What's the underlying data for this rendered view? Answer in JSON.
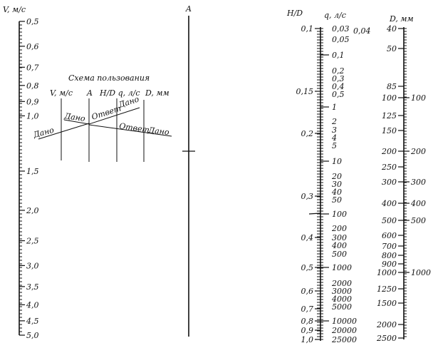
{
  "v_axis": {
    "title": "V, м/с",
    "labels": [
      "0,5",
      "0,6",
      "0,7",
      "0,8",
      "0,9",
      "1,0",
      "1,5",
      "2,0",
      "2,5",
      "3,0",
      "3,5",
      "4,0",
      "4,5",
      "5,0"
    ],
    "values": [
      0.5,
      0.6,
      0.7,
      0.8,
      0.9,
      1.0,
      1.5,
      2.0,
      2.5,
      3.0,
      3.5,
      4.0,
      4.5,
      5.0
    ],
    "scale": "log"
  },
  "a_axis": {
    "title": "A"
  },
  "hd_axis": {
    "title": "H/D",
    "labels": [
      "0,1",
      "0,15",
      "0,2",
      "0,3",
      "0,4",
      "0,5",
      "0,6",
      "0,7",
      "0,8",
      "0,9",
      "1,0"
    ]
  },
  "q_axis": {
    "title": "q, л/с",
    "labels": [
      "0,03",
      "0,04",
      "0,05",
      "0,1",
      "0,2",
      "0,3",
      "0,4",
      "0,5",
      "1",
      "2",
      "3",
      "4",
      "5",
      "10",
      "20",
      "30",
      "40",
      "50",
      "100",
      "200",
      "300",
      "400",
      "500",
      "1000",
      "2000",
      "3000",
      "4000",
      "5000",
      "10000",
      "20000",
      "25000"
    ]
  },
  "d_axis": {
    "title": "D, мм",
    "left_labels": [
      "40",
      "50",
      "85",
      "100",
      "125",
      "150",
      "200",
      "250",
      "300",
      "400",
      "500",
      "600",
      "700",
      "800",
      "900",
      "1000",
      "1250",
      "1500",
      "2000",
      "2500"
    ],
    "right_labels": [
      "100",
      "200",
      "300",
      "400",
      "500",
      "1000"
    ]
  },
  "scheme": {
    "title": "Схема пользования",
    "col_labels": [
      "V, м/с",
      "A",
      "H/D q, л/с",
      "D, мм"
    ],
    "given": "Дано",
    "answer": "Ответ"
  }
}
